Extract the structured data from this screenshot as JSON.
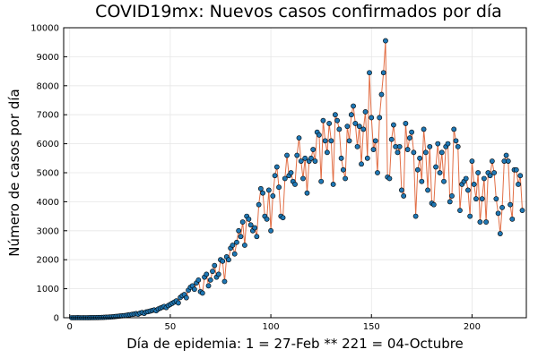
{
  "chart_data": {
    "type": "line",
    "title": "COVID19mx: Nuevos casos confirmados por día",
    "xlabel": "Día de epidemia: 1 = 27-Feb ** 221 = 04-Octubre",
    "ylabel": "Número de casos por día",
    "xlim": [
      -3,
      227
    ],
    "ylim": [
      0,
      10000
    ],
    "xticks": [
      0,
      50,
      100,
      150,
      200
    ],
    "yticks": [
      0,
      1000,
      2000,
      3000,
      4000,
      5000,
      6000,
      7000,
      8000,
      9000,
      10000
    ],
    "grid": true,
    "legend": "none",
    "colors": {
      "line": "#e26f46",
      "marker": "#1f77b4",
      "marker_edge": "#000000"
    },
    "series": [
      {
        "x_start": 1,
        "values": [
          1,
          0,
          1,
          2,
          0,
          1,
          0,
          1,
          0,
          2,
          3,
          3,
          4,
          6,
          8,
          11,
          14,
          17,
          20,
          25,
          30,
          37,
          45,
          50,
          60,
          65,
          72,
          80,
          95,
          105,
          115,
          125,
          140,
          120,
          160,
          180,
          150,
          200,
          210,
          230,
          250,
          270,
          240,
          300,
          330,
          360,
          390,
          350,
          420,
          460,
          500,
          540,
          580,
          510,
          700,
          760,
          800,
          690,
          950,
          1050,
          1100,
          980,
          1200,
          1300,
          900,
          850,
          1400,
          1500,
          1100,
          1300,
          1600,
          1800,
          1400,
          1500,
          2000,
          1950,
          1250,
          2100,
          2000,
          2400,
          2500,
          2200,
          2600,
          3000,
          2800,
          3300,
          2500,
          3500,
          3400,
          3200,
          3000,
          3100,
          2800,
          3900,
          4450,
          4300,
          3500,
          3400,
          4400,
          3000,
          4200,
          4900,
          5200,
          4500,
          3500,
          3450,
          4800,
          5600,
          4900,
          5000,
          4700,
          4600,
          5600,
          6200,
          5400,
          4800,
          5500,
          4300,
          5400,
          5500,
          5800,
          5400,
          6400,
          6300,
          4700,
          6800,
          6100,
          5700,
          6700,
          6100,
          4600,
          7000,
          6800,
          6500,
          5500,
          5100,
          4800,
          6600,
          6100,
          7000,
          7300,
          6700,
          5900,
          6600,
          5300,
          6500,
          7100,
          5500,
          8450,
          6900,
          5800,
          6100,
          5000,
          6900,
          7700,
          8450,
          9550,
          4850,
          4800,
          6150,
          6650,
          5900,
          5700,
          5900,
          4400,
          4200,
          6700,
          5800,
          6200,
          6400,
          5700,
          3500,
          5100,
          5500,
          4700,
          6500,
          5700,
          4400,
          5900,
          3950,
          3900,
          5200,
          6000,
          5000,
          5700,
          4700,
          5900,
          6000,
          4000,
          4200,
          6500,
          6100,
          5900,
          3700,
          4600,
          4700,
          4800,
          4400,
          3500,
          5400,
          4600,
          4100,
          5000,
          3300,
          4100,
          4800,
          3300,
          5000,
          4900,
          5400,
          5000,
          4100,
          3600,
          2900,
          3800,
          5400,
          5600,
          5400,
          3900,
          3400,
          5100,
          5100,
          4600,
          4900,
          3700
        ]
      }
    ]
  }
}
